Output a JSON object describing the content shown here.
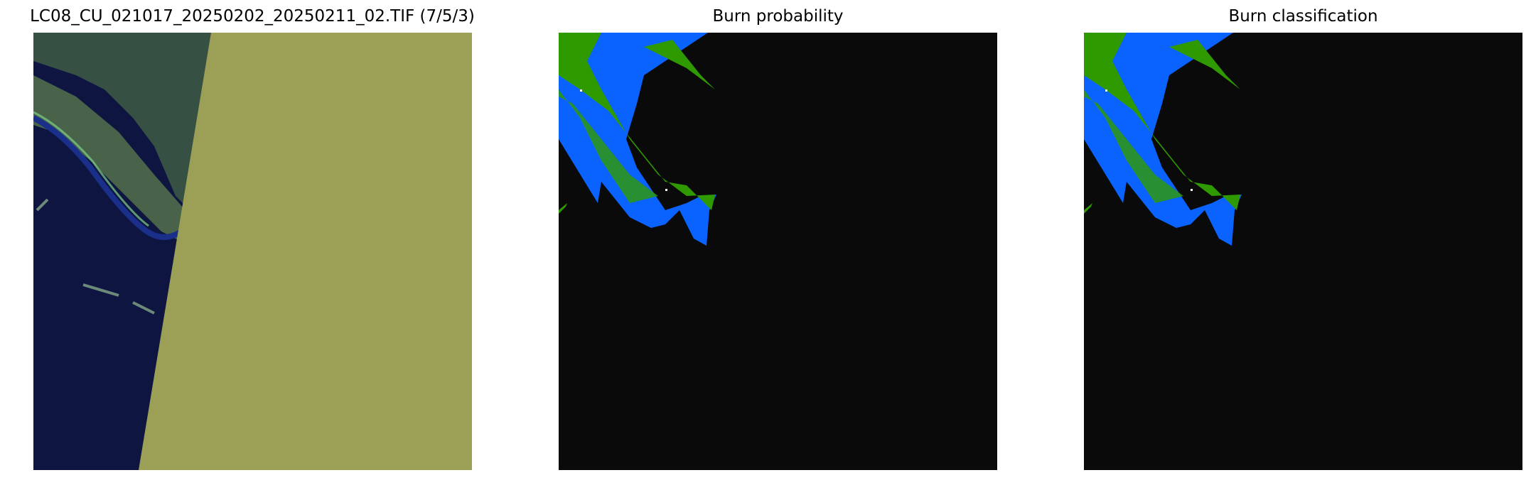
{
  "chart_data": [
    {
      "type": "image",
      "title": "LC08_CU_021017_20250202_20250211_02.TIF (7/5/3)",
      "axis": "off",
      "colors": {
        "water": "#0d1540",
        "land": "#4f6b4a",
        "nodata_fill": "#9ba056",
        "river": "#1a2f8a"
      }
    },
    {
      "type": "image",
      "title": "Burn probability",
      "axis": "off",
      "colors": {
        "background": "#0a0a0a",
        "class_blue": "#0a63ff",
        "class_green": "#2f9a00",
        "highlight": "#ffffff"
      }
    },
    {
      "type": "image",
      "title": "Burn classification",
      "axis": "off",
      "colors": {
        "background": "#0a0a0a",
        "class_blue": "#0a63ff",
        "class_green": "#2f9a00",
        "highlight": "#ffffff"
      }
    }
  ]
}
